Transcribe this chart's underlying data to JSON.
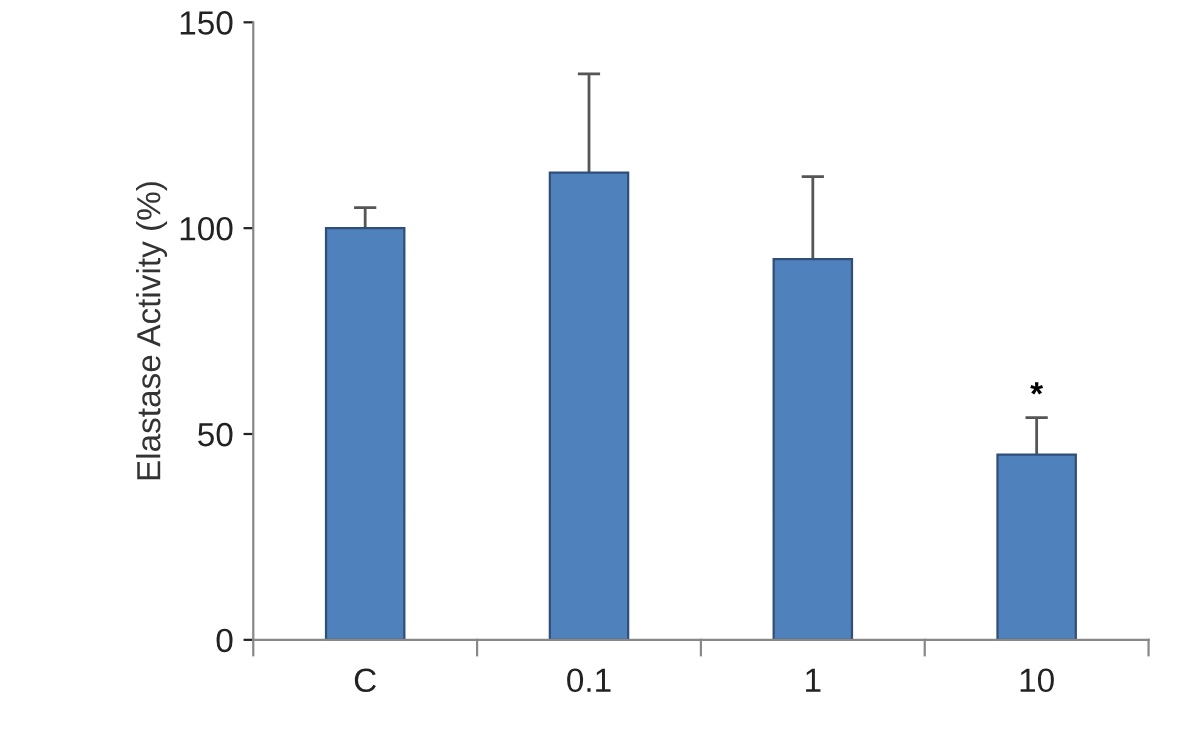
{
  "chart_data": {
    "type": "bar",
    "ylabel": "Elastase Activity (%)",
    "categories": [
      "C",
      "0.1",
      "1",
      "10"
    ],
    "values": [
      100,
      113.5,
      92.5,
      45
    ],
    "errors": [
      5,
      24,
      20,
      9
    ],
    "color": "#4f81bd",
    "ylim": [
      0,
      150
    ],
    "yticks": [
      0,
      50,
      100,
      150
    ],
    "grid": false,
    "annotations": [
      "*"
    ]
  }
}
